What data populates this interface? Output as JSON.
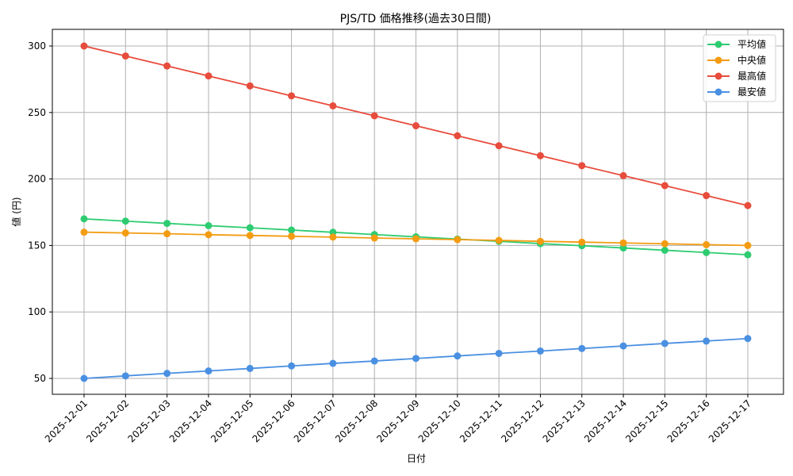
{
  "chart_data": {
    "type": "line",
    "title": "PJS/TD 価格推移(過去30日間)",
    "xlabel": "日付",
    "ylabel": "値 (円)",
    "ylim": [
      37,
      312
    ],
    "yticks": [
      50,
      100,
      150,
      200,
      250,
      300
    ],
    "grid": true,
    "legend_position": "upper right",
    "categories": [
      "2025-12-01",
      "2025-12-02",
      "2025-12-03",
      "2025-12-04",
      "2025-12-05",
      "2025-12-06",
      "2025-12-07",
      "2025-12-08",
      "2025-12-09",
      "2025-12-10",
      "2025-12-11",
      "2025-12-12",
      "2025-12-13",
      "2025-12-14",
      "2025-12-15",
      "2025-12-16",
      "2025-12-17"
    ],
    "series": [
      {
        "name": "平均値",
        "color": "#2ecc71",
        "values": [
          170,
          168.3,
          166.6,
          164.9,
          163.3,
          161.6,
          159.9,
          158.2,
          156.5,
          154.8,
          153.1,
          151.4,
          149.8,
          148.1,
          146.4,
          144.7,
          143
        ]
      },
      {
        "name": "中央値",
        "color": "#f39c12",
        "values": [
          160,
          159.4,
          158.8,
          158.1,
          157.5,
          156.9,
          156.3,
          155.6,
          155,
          154.4,
          153.8,
          153.1,
          152.5,
          151.9,
          151.3,
          150.6,
          150
        ]
      },
      {
        "name": "最高値",
        "color": "#e74c3c",
        "values": [
          300,
          292.5,
          285,
          277.5,
          270,
          262.5,
          255,
          247.5,
          240,
          232.5,
          225,
          217.5,
          210,
          202.5,
          195,
          187.5,
          180
        ]
      },
      {
        "name": "最安値",
        "color": "#4a90e2",
        "values": [
          50,
          51.9,
          53.8,
          55.6,
          57.5,
          59.4,
          61.3,
          63.1,
          65,
          66.9,
          68.8,
          70.6,
          72.5,
          74.4,
          76.3,
          78.1,
          80
        ]
      }
    ]
  }
}
